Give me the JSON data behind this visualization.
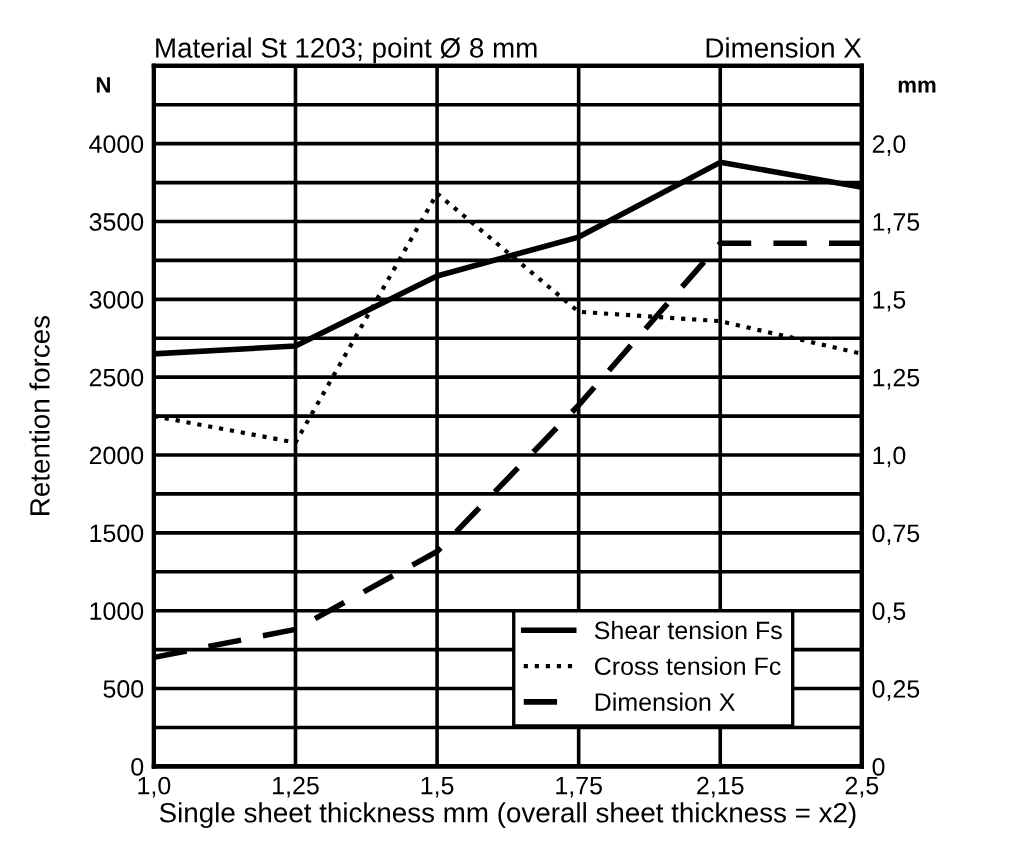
{
  "chart_data": {
    "type": "line",
    "title": "Material St 1203; point Ø 8 mm",
    "ylabel": "Retention forces",
    "y2label": "Dimension X",
    "xlabel": "Single sheet thickness mm (overall sheet thickness = x2)",
    "annotations": [
      "N",
      "mm"
    ],
    "categories": [
      "1,0",
      "1,25",
      "1,5",
      "1,75",
      "2,15",
      "2,5"
    ],
    "series": [
      {
        "name": "Shear tension Fs",
        "color": "#000000",
        "line_style": "solid",
        "values": [
          2650,
          2700,
          3150,
          3400,
          3880,
          3720
        ]
      },
      {
        "name": "Cross tension Fc",
        "color": "#000000",
        "line_style": "dotted",
        "values": [
          2250,
          2080,
          3680,
          2920,
          2860,
          2650
        ]
      },
      {
        "name": "Dimension X",
        "color": "#000000",
        "line_style": "dashed",
        "axis": "y2",
        "values": [
          0.35,
          0.44,
          0.69,
          1.16,
          1.68,
          1.68
        ]
      }
    ],
    "ylim": [
      0,
      4500
    ],
    "yticks": [
      0,
      {
        "value": 250,
        "label": null
      },
      500,
      {
        "value": 750,
        "label": null
      },
      1000,
      {
        "value": 1250,
        "label": null
      },
      1500,
      {
        "value": 1750,
        "label": null
      },
      2000,
      {
        "value": 2250,
        "label": null
      },
      2500,
      {
        "value": 2750,
        "label": null
      },
      3000,
      {
        "value": 3250,
        "label": null
      },
      3500,
      {
        "value": 3750,
        "label": null
      },
      4000,
      {
        "value": 4250,
        "label": null
      }
    ],
    "y2lim": [
      0,
      2.25
    ],
    "y2ticks": [
      0,
      {
        "value": 0.25,
        "label": "0,25"
      },
      {
        "value": 0.5,
        "label": "0,5"
      },
      {
        "value": 0.75,
        "label": "0,75"
      },
      {
        "value": 1.0,
        "label": "1,0"
      },
      {
        "value": 1.25,
        "label": "1,25"
      },
      {
        "value": 1.5,
        "label": "1,5"
      },
      {
        "value": 1.75,
        "label": "1,75"
      },
      {
        "value": 2.0,
        "label": "2,0"
      }
    ],
    "grid": true,
    "legend": "bottom right"
  }
}
